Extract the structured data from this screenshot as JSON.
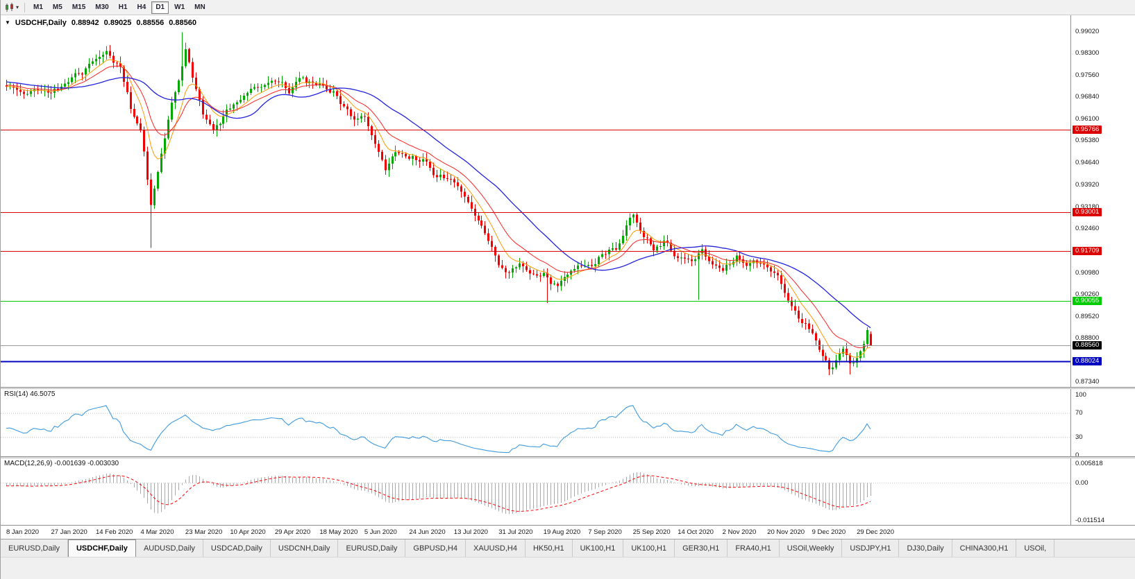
{
  "toolbar": {
    "timeframes": [
      {
        "label": "M1"
      },
      {
        "label": "M5"
      },
      {
        "label": "M15"
      },
      {
        "label": "M30"
      },
      {
        "label": "H1"
      },
      {
        "label": "H4"
      },
      {
        "label": "D1",
        "active": true
      },
      {
        "label": "W1"
      },
      {
        "label": "MN"
      }
    ]
  },
  "chart": {
    "title_symbol": "USDCHF,Daily",
    "ohlc": {
      "open": "0.88942",
      "high": "0.89025",
      "low": "0.88556",
      "close": "0.88560"
    },
    "colors": {
      "up": "#00a800",
      "down": "#ee0000",
      "ma_fast": "#ff9900",
      "ma_mid": "#ff2222",
      "ma_slow": "#2222dd",
      "current_line": "#9a9a9a"
    },
    "y_axis_labels": [
      "0.99020",
      "0.98300",
      "0.97560",
      "0.96840",
      "0.96100",
      "0.95380",
      "0.94640",
      "0.93920",
      "0.93180",
      "0.92460",
      "0.91720",
      "0.90980",
      "0.90260",
      "0.89520",
      "0.88800",
      "0.88060",
      "0.87340"
    ],
    "levels": [
      {
        "price": 0.95766,
        "label": "0.95766",
        "color": "#dd0000",
        "thickness": 1.4
      },
      {
        "price": 0.93001,
        "label": "0.93001",
        "color": "#dd0000",
        "thickness": 1.4
      },
      {
        "price": 0.91709,
        "label": "0.91709",
        "color": "#dd0000",
        "thickness": 1.4
      },
      {
        "price": 0.90055,
        "label": "0.90055",
        "color": "#00cc00",
        "thickness": 1.4
      },
      {
        "price": 0.88024,
        "label": "0.88024",
        "color": "#0000c0",
        "thickness": 2
      }
    ],
    "current_price": {
      "value": 0.8856,
      "label": "0.88560",
      "bg": "#000000"
    }
  },
  "rsi": {
    "title": "RSI(14) 46.5075",
    "period": 14,
    "color": "#3e9adf",
    "levels": [
      100,
      70,
      30,
      0
    ],
    "dashed_levels": [
      70,
      30
    ]
  },
  "macd": {
    "title": "MACD(12,26,9) -0.001639 -0.003030",
    "fast": 12,
    "slow": 26,
    "signal": 9,
    "hist_color": "#a8a8a8",
    "signal_color": "#ff0000",
    "axis": [
      {
        "v": 0.005818,
        "label": "0.005818"
      },
      {
        "v": 0,
        "label": "0.00"
      },
      {
        "v": -0.011514,
        "label": "-0.011514"
      }
    ]
  },
  "dates": [
    "8 Jan 2020",
    "27 Jan 2020",
    "14 Feb 2020",
    "4 Mar 2020",
    "23 Mar 2020",
    "10 Apr 2020",
    "29 Apr 2020",
    "18 May 2020",
    "5 Jun 2020",
    "24 Jun 2020",
    "13 Jul 2020",
    "31 Jul 2020",
    "19 Aug 2020",
    "7 Sep 2020",
    "25 Sep 2020",
    "14 Oct 2020",
    "2 Nov 2020",
    "20 Nov 2020",
    "9 Dec 2020",
    "29 Dec 2020"
  ],
  "tabs": [
    {
      "label": "EURUSD,Daily"
    },
    {
      "label": "USDCHF,Daily",
      "active": true
    },
    {
      "label": "AUDUSD,Daily"
    },
    {
      "label": "USDCAD,Daily"
    },
    {
      "label": "USDCNH,Daily"
    },
    {
      "label": "EURUSD,Daily"
    },
    {
      "label": "GBPUSD,H4"
    },
    {
      "label": "XAUUSD,H4"
    },
    {
      "label": "HK50,H1"
    },
    {
      "label": "UK100,H1"
    },
    {
      "label": "UK100,H1"
    },
    {
      "label": "GER30,H1"
    },
    {
      "label": "FRA40,H1"
    },
    {
      "label": "USOil,Weekly"
    },
    {
      "label": "USDJPY,H1"
    },
    {
      "label": "DJ30,Daily"
    },
    {
      "label": "CHINA300,H1"
    },
    {
      "label": "USOil,"
    }
  ],
  "chart_data": {
    "type": "candlestick",
    "symbol": "USDCHF",
    "timeframe": "Daily",
    "visible_range": {
      "price_min": 0.8734,
      "price_max": 0.9902
    },
    "bars_per_tick": 13,
    "num_bars": 252,
    "last_bar": {
      "open": 0.88942,
      "high": 0.89025,
      "low": 0.88556,
      "close": 0.8856
    },
    "price_path_anchors": [
      [
        0,
        0.9715
      ],
      [
        4,
        0.9687
      ],
      [
        8,
        0.9712
      ],
      [
        13,
        0.9692
      ],
      [
        17,
        0.9722
      ],
      [
        22,
        0.9772
      ],
      [
        26,
        0.9812
      ],
      [
        29,
        0.9842
      ],
      [
        33,
        0.9782
      ],
      [
        36,
        0.9645
      ],
      [
        39,
        0.9572
      ],
      [
        42,
        0.9335
      ],
      [
        44,
        0.9425
      ],
      [
        47,
        0.9605
      ],
      [
        50,
        0.9755
      ],
      [
        52,
        0.9845
      ],
      [
        54,
        0.9732
      ],
      [
        57,
        0.9622
      ],
      [
        60,
        0.9572
      ],
      [
        65,
        0.9652
      ],
      [
        70,
        0.9692
      ],
      [
        74,
        0.9732
      ],
      [
        78,
        0.9742
      ],
      [
        82,
        0.9702
      ],
      [
        86,
        0.9747
      ],
      [
        91,
        0.9722
      ],
      [
        95,
        0.9712
      ],
      [
        99,
        0.9632
      ],
      [
        102,
        0.9602
      ],
      [
        104,
        0.9612
      ],
      [
        107,
        0.9522
      ],
      [
        110,
        0.9442
      ],
      [
        113,
        0.9502
      ],
      [
        117,
        0.9472
      ],
      [
        121,
        0.9482
      ],
      [
        125,
        0.9422
      ],
      [
        130,
        0.9402
      ],
      [
        134,
        0.9322
      ],
      [
        138,
        0.9262
      ],
      [
        141,
        0.9182
      ],
      [
        143,
        0.9132
      ],
      [
        146,
        0.9092
      ],
      [
        149,
        0.9132
      ],
      [
        152,
        0.9112
      ],
      [
        156,
        0.9092
      ],
      [
        160,
        0.9052
      ],
      [
        163,
        0.9102
      ],
      [
        166,
        0.9122
      ],
      [
        169,
        0.9112
      ],
      [
        173,
        0.9162
      ],
      [
        177,
        0.9192
      ],
      [
        180,
        0.9252
      ],
      [
        182,
        0.9282
      ],
      [
        185,
        0.9222
      ],
      [
        188,
        0.9172
      ],
      [
        191,
        0.9202
      ],
      [
        195,
        0.9152
      ],
      [
        199,
        0.9142
      ],
      [
        202,
        0.9172
      ],
      [
        205,
        0.9132
      ],
      [
        208,
        0.9102
      ],
      [
        212,
        0.9152
      ],
      [
        216,
        0.9132
      ],
      [
        221,
        0.9112
      ],
      [
        224,
        0.9082
      ],
      [
        227,
        0.9022
      ],
      [
        230,
        0.8952
      ],
      [
        234,
        0.8902
      ],
      [
        237,
        0.8822
      ],
      [
        239,
        0.8782
      ],
      [
        241,
        0.8802
      ],
      [
        243,
        0.8832
      ],
      [
        245,
        0.8792
      ],
      [
        247,
        0.8812
      ],
      [
        249,
        0.8862
      ],
      [
        250,
        0.8902
      ],
      [
        251,
        0.8856
      ]
    ],
    "key_extremes": [
      {
        "index": 29,
        "high": 0.9848
      },
      {
        "index": 42,
        "low": 0.9182
      },
      {
        "index": 51,
        "high": 0.9901
      },
      {
        "index": 110,
        "low": 0.9425
      },
      {
        "index": 157,
        "low": 0.8998
      },
      {
        "index": 201,
        "low": 0.9008
      },
      {
        "index": 239,
        "low": 0.8757
      },
      {
        "index": 245,
        "low": 0.876
      },
      {
        "index": 250,
        "high": 0.8906
      }
    ],
    "indicators": {
      "rsi": {
        "period": 14,
        "last_value": 46.5075
      },
      "macd": {
        "fast": 12,
        "slow": 26,
        "signal": 9,
        "last_macd": -0.001639,
        "last_signal": -0.00303
      }
    }
  }
}
